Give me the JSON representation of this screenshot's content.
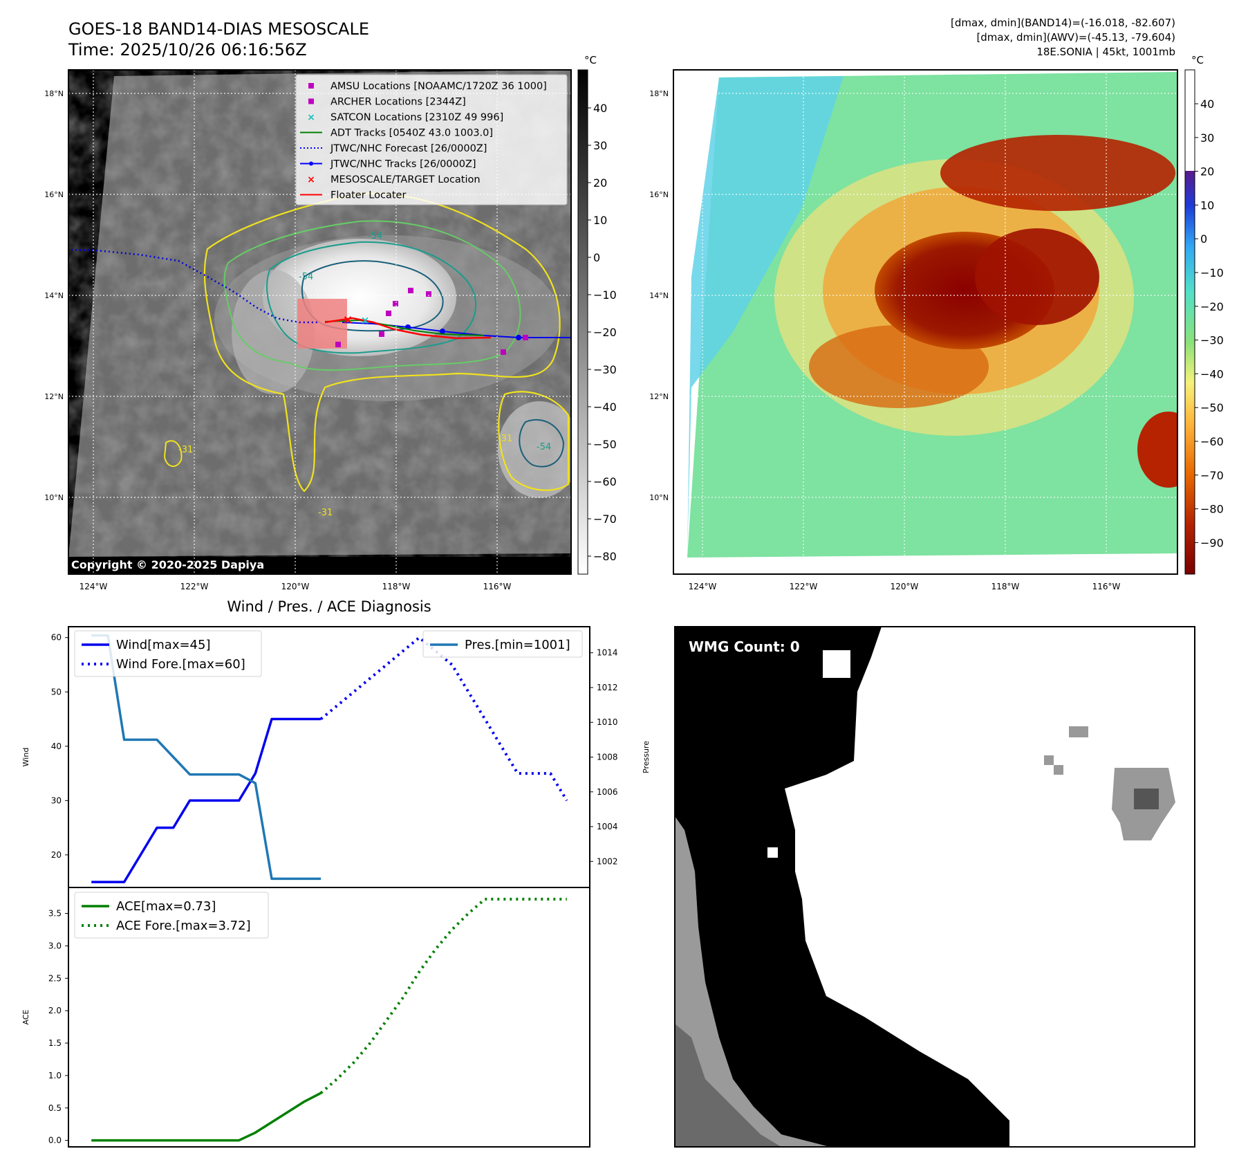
{
  "header": {
    "title_line1": "GOES-18 BAND14-DIAS MESOSCALE",
    "title_line2": "Time: 2025/10/26 06:16:56Z",
    "info_line1": "[dmax, dmin](BAND14)=(-16.018, -82.607)",
    "info_line2": "[dmax, dmin](AWV)=(-45.13, -79.604)",
    "info_line3": "18E.SONIA | 45kt, 1001mb"
  },
  "map_ir": {
    "copyright": "Copyright © 2020-2025 Dapiya",
    "lat_labels": [
      "18°N",
      "16°N",
      "14°N",
      "12°N",
      "10°N"
    ],
    "lon_labels": [
      "124°W",
      "122°W",
      "120°W",
      "118°W",
      "116°W"
    ],
    "contour_labels": [
      "-54",
      "-31",
      "-54",
      "-31",
      "-54",
      "-31"
    ],
    "legend": [
      {
        "label": "AMSU Locations [NOAAMC/1720Z 36 1000]",
        "marker": "square",
        "color": "#c000c0"
      },
      {
        "label": "ARCHER Locations [2344Z]",
        "marker": "square",
        "color": "#c000c0"
      },
      {
        "label": "SATCON Locations [2310Z 49 996]",
        "marker": "x",
        "color": "#17c0c0"
      },
      {
        "label": "ADT Tracks [0540Z 43.0 1003.0]",
        "marker": "line",
        "color": "#008000"
      },
      {
        "label": "JTWC/NHC Forecast [26/0000Z]",
        "marker": "dotted",
        "color": "#0000ff"
      },
      {
        "label": "JTWC/NHC Tracks [26/0000Z]",
        "marker": "line-dot",
        "color": "#0000ff"
      },
      {
        "label": "MESOSCALE/TARGET Location",
        "marker": "x",
        "color": "#ff0000"
      },
      {
        "label": "Floater Locater",
        "marker": "line",
        "color": "#ff0000"
      }
    ],
    "colorbar": {
      "unit": "°C",
      "ticks": [
        "40",
        "30",
        "20",
        "10",
        "0",
        "−10",
        "−20",
        "−30",
        "−40",
        "−50",
        "−60",
        "−70",
        "−80"
      ]
    }
  },
  "map_awv": {
    "lat_labels": [
      "18°N",
      "16°N",
      "14°N",
      "12°N",
      "10°N"
    ],
    "lon_labels": [
      "124°W",
      "122°W",
      "120°W",
      "118°W",
      "116°W"
    ],
    "colorbar": {
      "unit": "°C",
      "ticks": [
        "40",
        "30",
        "20",
        "10",
        "0",
        "−10",
        "−20",
        "−30",
        "−40",
        "−50",
        "−60",
        "−70",
        "−80",
        "−90"
      ]
    }
  },
  "wmg": {
    "count_label": "WMG Count: 0"
  },
  "chart_data": [
    {
      "type": "line",
      "title": "Wind / Pres. / ACE Diagnosis",
      "ylabel": "Wind",
      "y2label": "Pressure",
      "ylim": [
        14,
        62
      ],
      "y2lim": [
        1000.5,
        1015.5
      ],
      "yticks": [
        20,
        30,
        40,
        50,
        60
      ],
      "y2ticks": [
        1002,
        1004,
        1006,
        1008,
        1010,
        1012,
        1014
      ],
      "x": [
        0,
        1,
        2,
        3,
        4,
        5,
        6,
        7,
        8,
        9,
        10,
        11,
        12,
        13,
        14,
        15,
        16,
        17,
        18,
        19,
        20,
        21,
        22,
        23,
        24,
        25,
        26,
        27,
        28,
        29
      ],
      "series": [
        {
          "name": "Wind[max=45]",
          "style": "solid",
          "color": "#0000ee",
          "x": [
            0,
            1,
            2,
            3,
            4,
            5,
            6,
            7,
            8,
            9,
            10,
            11,
            12,
            13,
            14
          ],
          "values": [
            15,
            15,
            15,
            20,
            25,
            25,
            30,
            30,
            30,
            30,
            35,
            45,
            45,
            45,
            45
          ]
        },
        {
          "name": "Wind Fore.[max=60]",
          "style": "dotted",
          "color": "#0000ee",
          "x": [
            14,
            15,
            16,
            17,
            18,
            19,
            20,
            21,
            22,
            23,
            24,
            25,
            26,
            27,
            28,
            29
          ],
          "values": [
            45,
            47.5,
            50,
            52.5,
            55,
            57.5,
            60,
            57.5,
            55,
            50,
            45,
            40,
            35,
            35,
            35,
            30
          ]
        },
        {
          "name": "Pres.[min=1001]",
          "style": "solid",
          "color": "#1f77b4",
          "axis": "right",
          "x": [
            0,
            1,
            2,
            3,
            4,
            5,
            6,
            7,
            8,
            9,
            10,
            11,
            12,
            13,
            14
          ],
          "values": [
            1015,
            1015,
            1009,
            1009,
            1009,
            1008,
            1007,
            1007,
            1007,
            1007,
            1006.5,
            1001,
            1001,
            1001,
            1001
          ]
        }
      ]
    },
    {
      "type": "line",
      "ylabel": "ACE",
      "ylim": [
        -0.1,
        3.9
      ],
      "yticks": [
        0.0,
        0.5,
        1.0,
        1.5,
        2.0,
        2.5,
        3.0,
        3.5
      ],
      "x": [
        0,
        1,
        2,
        3,
        4,
        5,
        6,
        7,
        8,
        9,
        10,
        11,
        12,
        13,
        14,
        15,
        16,
        17,
        18,
        19,
        20,
        21,
        22,
        23,
        24,
        25,
        26,
        27,
        28,
        29
      ],
      "series": [
        {
          "name": "ACE[max=0.73]",
          "style": "solid",
          "color": "#008000",
          "x": [
            0,
            1,
            2,
            3,
            4,
            5,
            6,
            7,
            8,
            9,
            10,
            11,
            12,
            13,
            14
          ],
          "values": [
            0,
            0,
            0,
            0,
            0,
            0,
            0,
            0,
            0,
            0,
            0.12,
            0.28,
            0.44,
            0.6,
            0.73
          ]
        },
        {
          "name": "ACE Fore.[max=3.72]",
          "style": "dotted",
          "color": "#008000",
          "x": [
            14,
            15,
            16,
            17,
            18,
            19,
            20,
            21,
            22,
            23,
            24,
            25,
            26,
            27,
            28,
            29
          ],
          "values": [
            0.73,
            0.95,
            1.2,
            1.5,
            1.85,
            2.2,
            2.6,
            2.95,
            3.25,
            3.5,
            3.72,
            3.72,
            3.72,
            3.72,
            3.72,
            3.72
          ]
        }
      ]
    }
  ]
}
